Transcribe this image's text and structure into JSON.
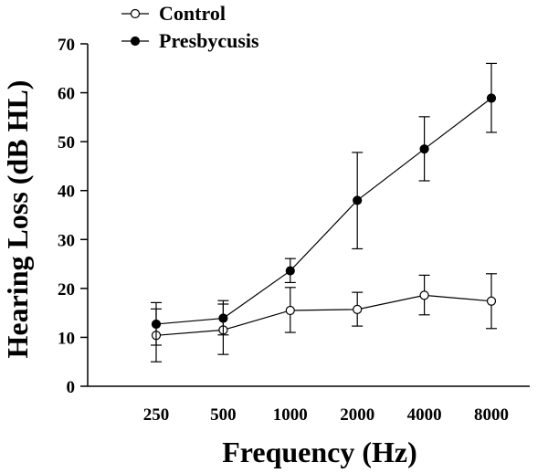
{
  "chart_data": {
    "type": "line",
    "title": "",
    "xlabel": "Frequency (Hz)",
    "ylabel": "Hearing Loss (dB HL)",
    "categories": [
      "250",
      "500",
      "1000",
      "2000",
      "4000",
      "8000"
    ],
    "ylim": [
      0,
      70
    ],
    "yticks": [
      0,
      10,
      20,
      30,
      40,
      50,
      60,
      70
    ],
    "grid": false,
    "legend_position": "top-left",
    "series": [
      {
        "name": "Control",
        "marker": "open-circle",
        "values": [
          10.4,
          11.5,
          15.5,
          15.7,
          18.6,
          17.4
        ],
        "error_low": [
          5.0,
          6.5,
          11.0,
          12.3,
          14.6,
          11.8
        ],
        "error_high": [
          15.8,
          16.8,
          20.2,
          19.2,
          22.7,
          23.0
        ]
      },
      {
        "name": "Presbycusis",
        "marker": "filled-circle",
        "values": [
          12.7,
          13.9,
          23.6,
          38.0,
          48.5,
          58.9
        ],
        "error_low": [
          8.4,
          10.5,
          21.2,
          28.1,
          42.0,
          51.9
        ],
        "error_high": [
          17.1,
          17.5,
          26.1,
          47.8,
          55.1,
          66.0
        ]
      }
    ]
  }
}
